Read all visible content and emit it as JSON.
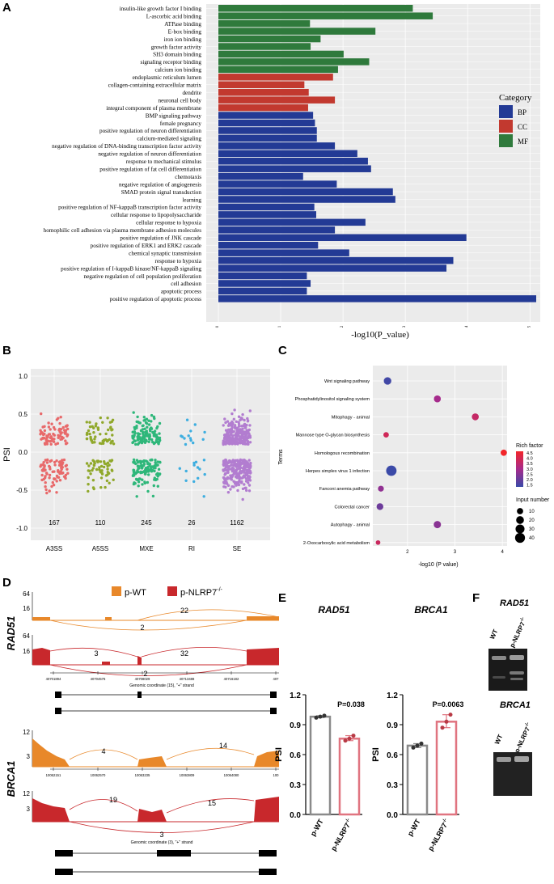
{
  "panels": {
    "a": "A",
    "b": "B",
    "c": "C",
    "d": "D",
    "e": "E",
    "f": "F"
  },
  "panel_a": {
    "xlabel": "-log10(P_value)",
    "legend_title": "Category",
    "colors": {
      "BP": "#233a95",
      "CC": "#c2392f",
      "MF": "#2f7a3c"
    }
  },
  "panel_b": {
    "ylabel": "PSI",
    "colors": {
      "A3SS": "#e8696a",
      "A5SS": "#90a82b",
      "MXE": "#2eb77a",
      "RI": "#3eaee0",
      "SE": "#b27dd0"
    }
  },
  "panel_c": {
    "xlabel": "-log10 (P value)",
    "ylabel": "Terms",
    "legend_rich_title": "Rich factor",
    "legend_rich_ticks": [
      "4.5",
      "4.0",
      "3.5",
      "3.0",
      "2.5",
      "2.0",
      "1.5"
    ],
    "legend_size_title": "Input number",
    "legend_size_values": [
      "10",
      "20",
      "30",
      "40"
    ]
  },
  "panel_d": {
    "legend_wt": "p-WT",
    "legend_ko": "p-NLRP7",
    "ko_sup": "-/-",
    "rad51_label": "RAD51",
    "brca1_label": "BRCA1",
    "rad51_top_ticks": [
      "64",
      "16"
    ],
    "rad51_bot_ticks": [
      "64",
      "16"
    ],
    "rad51_wt_junctions": [
      "22",
      "2"
    ],
    "rad51_ko_junctions": [
      "3",
      "32",
      "2"
    ],
    "rad51_coords": [
      "40701894",
      "40704576",
      "40708029",
      "40713488",
      "40716182",
      "407"
    ],
    "rad51_coord_label": "Genomic coordinate (15), \"+\" strand",
    "brca1_top_ticks": [
      "12",
      "3"
    ],
    "brca1_bot_ticks": [
      "12",
      "3"
    ],
    "brca1_wt_junctions": [
      "4",
      "14"
    ],
    "brca1_ko_junctions": [
      "19",
      "15",
      "3"
    ],
    "brca1_coords": [
      "10062151",
      "10062570",
      "10063235",
      "10063809",
      "10064080",
      "100"
    ],
    "brca1_coord_label": "Genomic coordinate (3), \"+\" strand",
    "wt_color": "#e8882a",
    "ko_color": "#c8282c"
  },
  "panel_e": {
    "ylabel": "PSI",
    "cat_wt": "p-WT",
    "cat_ko": "p-NLRP7",
    "ko_sup": "-/-",
    "yticks": [
      "0.0",
      "0.3",
      "0.6",
      "0.9",
      "1.2"
    ],
    "rad51": {
      "title": "RAD51",
      "pvalue": "P=0.038"
    },
    "brca1": {
      "title": "BRCA1",
      "pvalue": "P=0.0063"
    }
  },
  "panel_f": {
    "rad51_title": "RAD51",
    "brca1_title": "BRCA1",
    "lane_wt": "WT",
    "lane_ko": "p-NLRP7",
    "ko_sup": "-/-"
  },
  "chart_data": [
    {
      "type": "bar",
      "orientation": "horizontal",
      "panel": "A",
      "xlabel": "-log10(P_value)",
      "xticks": [
        "0",
        "1",
        "2",
        "3",
        "4",
        "5"
      ],
      "xlim": [
        0,
        5.1
      ],
      "legend_title": "Category",
      "legend": [
        "BP",
        "CC",
        "MF"
      ],
      "categories": [
        "insulin-like growth factor I binding",
        "L-ascorbic acid binding",
        "ATPase binding",
        "E-box binding",
        "iron ion binding",
        "growth factor activity",
        "SH3 domain binding",
        "signaling receptor binding",
        "calcium ion binding",
        "endoplasmic reticulum lumen",
        "collagen-containing extracellular matrix",
        "dendrite",
        "neuronal cell body",
        "integral component of plasma membrane",
        "BMP signaling pathway",
        "female pregnancy",
        "positive regulation of neuron differentiation",
        "calcium-mediated signaling",
        "negative regulation of DNA-binding transcription factor activity",
        "negative regulation of neuron differentiation",
        "response to mechanical stimulus",
        "positive regulation of fat cell differentiation",
        "chemotaxis",
        "negative regulation of angiogenesis",
        "SMAD protein signal transduction",
        "learning",
        "positive regulation of NF-kappaB transcription factor activity",
        "cellular response to lipopolysaccharide",
        "cellular response to hypoxia",
        "homophilic cell adhesion via plasma membrane adhesion molecules",
        "positive regulation of JNK cascade",
        "positive regulation of ERK1 and ERK2 cascade",
        "chemical synaptic transmission",
        "response to hypoxia",
        "positive regulation of I-kappaB kinase/NF-kappaB signaling",
        "negative regulation of cell population proliferation",
        "cell adhesion",
        "apoptotic process",
        "positive regulation of apoptotic process"
      ],
      "values": [
        3.12,
        3.44,
        1.47,
        2.52,
        1.64,
        1.48,
        2.01,
        2.42,
        1.92,
        1.84,
        1.38,
        1.45,
        1.87,
        1.44,
        1.52,
        1.55,
        1.58,
        1.58,
        1.87,
        2.23,
        2.4,
        2.45,
        1.36,
        1.9,
        2.8,
        2.84,
        1.54,
        1.57,
        2.36,
        1.87,
        3.98,
        1.6,
        2.1,
        3.77,
        3.66,
        1.42,
        1.48,
        1.42,
        5.1
      ],
      "category_of_bar": [
        "MF",
        "MF",
        "MF",
        "MF",
        "MF",
        "MF",
        "MF",
        "MF",
        "MF",
        "CC",
        "CC",
        "CC",
        "CC",
        "CC",
        "BP",
        "BP",
        "BP",
        "BP",
        "BP",
        "BP",
        "BP",
        "BP",
        "BP",
        "BP",
        "BP",
        "BP",
        "BP",
        "BP",
        "BP",
        "BP",
        "BP",
        "BP",
        "BP",
        "BP",
        "BP",
        "BP",
        "BP",
        "BP",
        "BP"
      ]
    },
    {
      "type": "scatter",
      "panel": "B",
      "ylabel": "PSI",
      "categories": [
        "A3SS",
        "A5SS",
        "MXE",
        "RI",
        "SE"
      ],
      "counts": [
        167,
        110,
        245,
        26,
        1162
      ],
      "count_labels": [
        "167",
        "110",
        "245",
        "26",
        "1162"
      ],
      "yticks": [
        "-1.0",
        "-0.5",
        "0.0",
        "0.5",
        "1.0"
      ],
      "ylim": [
        -1.1,
        1.05
      ]
    },
    {
      "type": "scatter",
      "panel": "C",
      "xlabel": "-log10 (P value)",
      "ylabel": "Terms",
      "xticks": [
        "2",
        "3",
        "4"
      ],
      "terms": [
        "Wnt signaling pathway",
        "Phosphatidylinositol signaling system",
        "Mitophagy - animal",
        "Mannose type O-glycan biosynthesis",
        "Homologous recombination",
        "Herpes simplex virus 1 infection",
        "Fanconi anemia pathway",
        "Colorectal cancer",
        "Autophagy - animal",
        "2-Oxocarboxylic acid metabolism"
      ],
      "x": [
        1.58,
        2.63,
        3.43,
        1.55,
        4.03,
        1.66,
        1.44,
        1.42,
        2.63,
        1.38
      ],
      "rich_factor": [
        1.6,
        3.0,
        3.6,
        3.8,
        4.5,
        1.5,
        2.7,
        2.2,
        2.6,
        3.7
      ],
      "input_number": [
        18,
        14,
        14,
        6,
        10,
        45,
        8,
        13,
        16,
        3
      ]
    },
    {
      "type": "bar",
      "panel": "E-RAD51",
      "title": "RAD51",
      "categories": [
        "p-WT",
        "p-NLRP7-/-"
      ],
      "values": [
        0.98,
        0.76
      ],
      "points": [
        [
          0.97,
          0.98,
          0.99
        ],
        [
          0.74,
          0.76,
          0.79
        ]
      ],
      "pvalue": "P=0.038",
      "ylim": [
        0,
        1.2
      ]
    },
    {
      "type": "bar",
      "panel": "E-BRCA1",
      "title": "BRCA1",
      "categories": [
        "p-WT",
        "p-NLRP7-/-"
      ],
      "values": [
        0.69,
        0.93
      ],
      "points": [
        [
          0.67,
          0.69,
          0.71
        ],
        [
          0.87,
          0.93,
          1.0
        ]
      ],
      "pvalue": "P=0.0063",
      "ylim": [
        0,
        1.2
      ]
    }
  ]
}
